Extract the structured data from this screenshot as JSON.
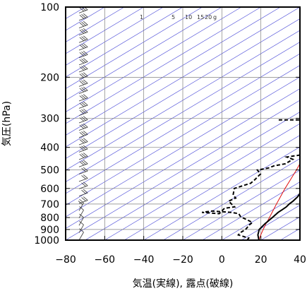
{
  "chart_data": {
    "type": "line",
    "xlabel": "気温(実線), 露点(破線)",
    "ylabel": "気圧(hPa)",
    "xlim": [
      -80,
      40
    ],
    "ylim": [
      1000,
      100
    ],
    "y_scale": "log",
    "x_ticks": [
      "−80",
      "−60",
      "−40",
      "−20",
      "0",
      "20",
      "40"
    ],
    "y_ticks": [
      "100",
      "200",
      "300",
      "400",
      "500",
      "600",
      "700",
      "800",
      "900",
      "1000"
    ],
    "mixing_ratio_labels": [
      "1",
      "5",
      "10",
      "15",
      "20",
      "g"
    ],
    "grid": true,
    "colors": {
      "isotherm": "#4b4bd8",
      "parcel": "#e01010",
      "profile": "#000000",
      "grid": "#808080"
    },
    "series": [
      {
        "name": "",
        "style": "solid",
        "points": [
          [
            1000,
            19
          ],
          [
            950,
            14
          ],
          [
            900,
            10
          ],
          [
            850,
            8
          ],
          [
            800,
            6.5
          ],
          [
            760,
            5
          ],
          [
            740,
            4.8
          ],
          [
            720,
            4.5
          ],
          [
            700,
            3.5
          ],
          [
            680,
            3.0
          ],
          [
            650,
            1.5
          ],
          [
            620,
            -1
          ],
          [
            600,
            -2.5
          ],
          [
            550,
            -6
          ],
          [
            500,
            -11
          ],
          [
            450,
            -15
          ],
          [
            400,
            -21
          ],
          [
            350,
            -28
          ],
          [
            300,
            -37
          ],
          [
            270,
            -43
          ],
          [
            250,
            -49
          ],
          [
            225,
            -50
          ],
          [
            200,
            -56
          ],
          [
            175,
            -62
          ],
          [
            150,
            -64
          ],
          [
            130,
            -66
          ],
          [
            115,
            -67
          ],
          [
            100,
            -67
          ]
        ]
      },
      {
        "name": "",
        "style": "dashed",
        "points": [
          [
            1000,
            13
          ],
          [
            980,
            12
          ],
          [
            950,
            4
          ],
          [
            930,
            3
          ],
          [
            900,
            3
          ],
          [
            880,
            2
          ],
          [
            860,
            1
          ],
          [
            840,
            0.5
          ],
          [
            820,
            -4
          ],
          [
            800,
            -9
          ],
          [
            790,
            -11
          ],
          [
            770,
            -14
          ],
          [
            760,
            -19
          ],
          [
            750,
            -30
          ],
          [
            760,
            -34
          ],
          [
            770,
            -24
          ],
          [
            730,
            -26
          ],
          [
            720,
            -22
          ],
          [
            700,
            -26
          ],
          [
            680,
            -30
          ],
          [
            660,
            -29
          ],
          [
            640,
            -33
          ],
          [
            600,
            -38
          ],
          [
            570,
            -34
          ],
          [
            550,
            -35
          ],
          [
            520,
            -37
          ],
          [
            500,
            -42
          ],
          [
            490,
            -38
          ],
          [
            480,
            -37
          ],
          [
            470,
            -33
          ],
          [
            450,
            -33
          ],
          [
            440,
            -38
          ],
          [
            430,
            -32
          ],
          [
            400,
            -35
          ],
          [
            380,
            -40
          ],
          [
            360,
            -36
          ],
          [
            340,
            -41
          ],
          [
            320,
            -43
          ],
          [
            305,
            -45
          ],
          [
            305,
            -75
          ]
        ]
      }
    ],
    "parcel_curve": [
      [
        1000,
        19
      ],
      [
        950,
        15.5
      ],
      [
        900,
        12
      ],
      [
        850,
        8.5
      ],
      [
        800,
        5
      ],
      [
        700,
        -3
      ],
      [
        600,
        -12
      ],
      [
        500,
        -22
      ],
      [
        400,
        -35
      ],
      [
        300,
        -51
      ],
      [
        250,
        -61
      ],
      [
        200,
        -72
      ],
      [
        180,
        -78
      ]
    ]
  }
}
